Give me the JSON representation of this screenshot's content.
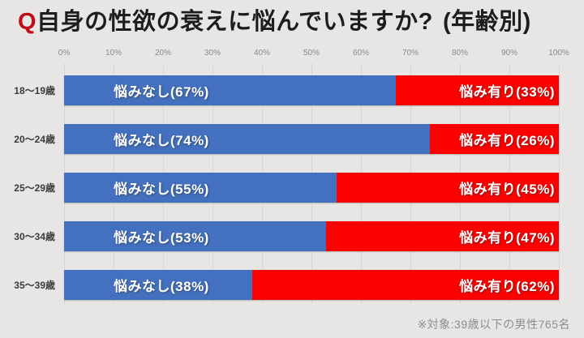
{
  "title": {
    "q": "Q",
    "main": "自身の性欲の衰えに悩んでいますか?",
    "suffix": "(年齢別)"
  },
  "axis_ticks": [
    "0%",
    "10%",
    "20%",
    "30%",
    "40%",
    "50%",
    "60%",
    "70%",
    "80%",
    "90%",
    "100%"
  ],
  "footnote": "※対象:39歳以下の男性765名",
  "colors": {
    "background": "#e8e6e4",
    "gridline": "#d8d6d4",
    "bar_no_worry": "#4371bf",
    "bar_worry": "#fb0100",
    "title_q": "#c00c16",
    "title_text": "#1d1d1d",
    "axis_text": "#8a8a8a",
    "row_label_text": "#3b3b3b",
    "bar_label_text": "#ffffff",
    "footnote_text": "#8d8d8d"
  },
  "chart_data": {
    "type": "bar",
    "orientation": "horizontal",
    "stacked": true,
    "title": "Q自身の性欲の衰えに悩んでいますか?(年齢別)",
    "categories": [
      "18〜19歳",
      "20〜24歳",
      "25〜29歳",
      "30〜34歳",
      "35〜39歳"
    ],
    "series": [
      {
        "name": "悩みなし",
        "color": "#4371bf",
        "values": [
          67,
          74,
          55,
          53,
          38
        ]
      },
      {
        "name": "悩み有り",
        "color": "#fb0100",
        "values": [
          33,
          26,
          45,
          47,
          62
        ]
      }
    ],
    "xlim": [
      0,
      100
    ],
    "x_ticks_percent": [
      0,
      10,
      20,
      30,
      40,
      50,
      60,
      70,
      80,
      90,
      100
    ],
    "grid": true,
    "legend": "none",
    "segment_labels": [
      {
        "no_worry": "悩みなし(67%)",
        "worry": "悩み有り(33%)"
      },
      {
        "no_worry": "悩みなし(74%)",
        "worry": "悩み有り(26%)"
      },
      {
        "no_worry": "悩みなし(55%)",
        "worry": "悩み有り(45%)"
      },
      {
        "no_worry": "悩みなし(53%)",
        "worry": "悩み有り(47%)"
      },
      {
        "no_worry": "悩みなし(38%)",
        "worry": "悩み有り(62%)"
      }
    ]
  }
}
